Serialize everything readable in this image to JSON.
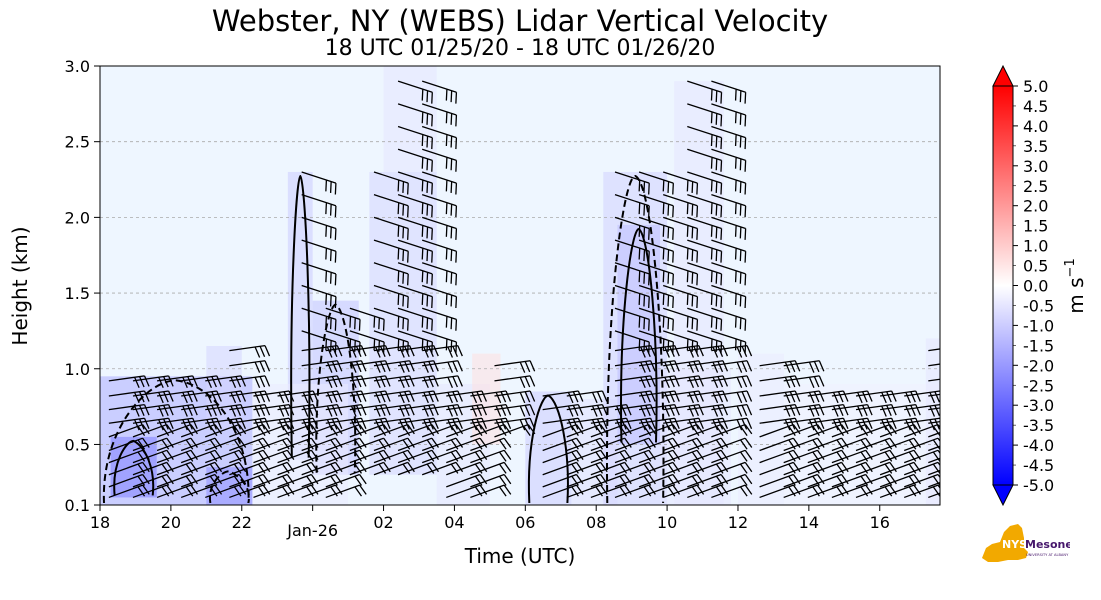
{
  "chart_data": {
    "type": "heatmap",
    "title": "Webster, NY (WEBS) Lidar Vertical Velocity",
    "subtitle": "18 UTC 01/25/20 - 18 UTC 01/26/20",
    "xlabel": "Time (UTC)",
    "ylabel": "Height (km)",
    "x_tick_labels": [
      "18",
      "20",
      "22",
      "Jan-26",
      "02",
      "04",
      "06",
      "08",
      "10",
      "12",
      "14",
      "16"
    ],
    "x_tick_hours": [
      0,
      2,
      4,
      6,
      8,
      10,
      12,
      14,
      16,
      18,
      20,
      22
    ],
    "xlim_hours": [
      0,
      23.7
    ],
    "y_tick_labels": [
      "0.1",
      "0.5",
      "1.0",
      "1.5",
      "2.0",
      "2.5",
      "3.0"
    ],
    "y_tick_values": [
      0.1,
      0.5,
      1.0,
      1.5,
      2.0,
      2.5,
      3.0
    ],
    "ylim": [
      0.1,
      3.0
    ],
    "grid": "horizontal dashed",
    "colorbar": {
      "label": "m s",
      "label_exponent": "−1",
      "min": -5.0,
      "max": 5.0,
      "extend": "both",
      "tick_labels": [
        "-5.0",
        "-4.0",
        "-3.0",
        "-2.0",
        "-1.0",
        "0.0",
        "1.0",
        "2.0",
        "3.0",
        "4.0",
        "5.0"
      ],
      "minor_tick_labels": [
        "-4.5",
        "-3.5",
        "-2.5",
        "-1.5",
        "-0.5",
        "0.5",
        "1.5",
        "2.5",
        "3.5",
        "4.5"
      ]
    },
    "colors": {
      "background": "#eef6ff",
      "negative": "#0000ff",
      "neutral": "#ffffff",
      "positive": "#ff0000",
      "contour": "#000000",
      "barb": "#000000",
      "grid": "#aaaaaa"
    },
    "velocity_regions": [
      {
        "t0": 0.0,
        "t1": 4.3,
        "h0": 0.1,
        "h1": 0.95,
        "v": -1.6
      },
      {
        "t0": 0.3,
        "t1": 1.6,
        "h0": 0.15,
        "h1": 0.55,
        "v": -2.5
      },
      {
        "t0": 3.0,
        "t1": 4.3,
        "h0": 0.1,
        "h1": 0.35,
        "v": -2.2
      },
      {
        "t0": 3.0,
        "t1": 4.0,
        "h0": 0.6,
        "h1": 1.15,
        "v": -0.8
      },
      {
        "t0": 5.3,
        "t1": 6.0,
        "h0": 0.4,
        "h1": 2.3,
        "v": -1.0
      },
      {
        "t0": 6.0,
        "t1": 7.3,
        "h0": 0.3,
        "h1": 1.45,
        "v": -1.2
      },
      {
        "t0": 7.6,
        "t1": 9.5,
        "h0": 0.3,
        "h1": 2.3,
        "v": -0.8
      },
      {
        "t0": 8.0,
        "t1": 9.5,
        "h0": 2.3,
        "h1": 3.0,
        "v": -0.5
      },
      {
        "t0": 4.3,
        "t1": 7.0,
        "h0": 0.1,
        "h1": 0.9,
        "v": -0.4
      },
      {
        "t0": 9.5,
        "t1": 11.0,
        "h0": 0.1,
        "h1": 0.9,
        "v": -0.5
      },
      {
        "t0": 10.5,
        "t1": 11.3,
        "h0": 0.5,
        "h1": 1.1,
        "v": 0.6
      },
      {
        "t0": 12.0,
        "t1": 13.3,
        "h0": 0.1,
        "h1": 0.85,
        "v": -1.0
      },
      {
        "t0": 13.3,
        "t1": 14.6,
        "h0": 0.1,
        "h1": 0.8,
        "v": -0.6
      },
      {
        "t0": 14.2,
        "t1": 16.0,
        "h0": 0.1,
        "h1": 2.3,
        "v": -0.9
      },
      {
        "t0": 14.6,
        "t1": 15.8,
        "h0": 0.5,
        "h1": 1.95,
        "v": -1.3
      },
      {
        "t0": 15.8,
        "t1": 17.8,
        "h0": 0.1,
        "h1": 1.0,
        "v": -0.5
      },
      {
        "t0": 16.2,
        "t1": 17.6,
        "h0": 0.1,
        "h1": 2.9,
        "v": -0.5
      },
      {
        "t0": 18.0,
        "t1": 19.3,
        "h0": 0.1,
        "h1": 1.1,
        "v": -0.4
      },
      {
        "t0": 19.3,
        "t1": 23.7,
        "h0": 0.1,
        "h1": 0.9,
        "v": -0.3
      },
      {
        "t0": 23.3,
        "t1": 23.7,
        "h0": 0.1,
        "h1": 1.2,
        "v": -0.5
      }
    ]
  },
  "logo": {
    "wordmark": "NYS Mesonet",
    "subtext": "UNIVERSITY AT ALBANY",
    "colors": {
      "state": "#f2a900",
      "text": "#46166b"
    }
  }
}
